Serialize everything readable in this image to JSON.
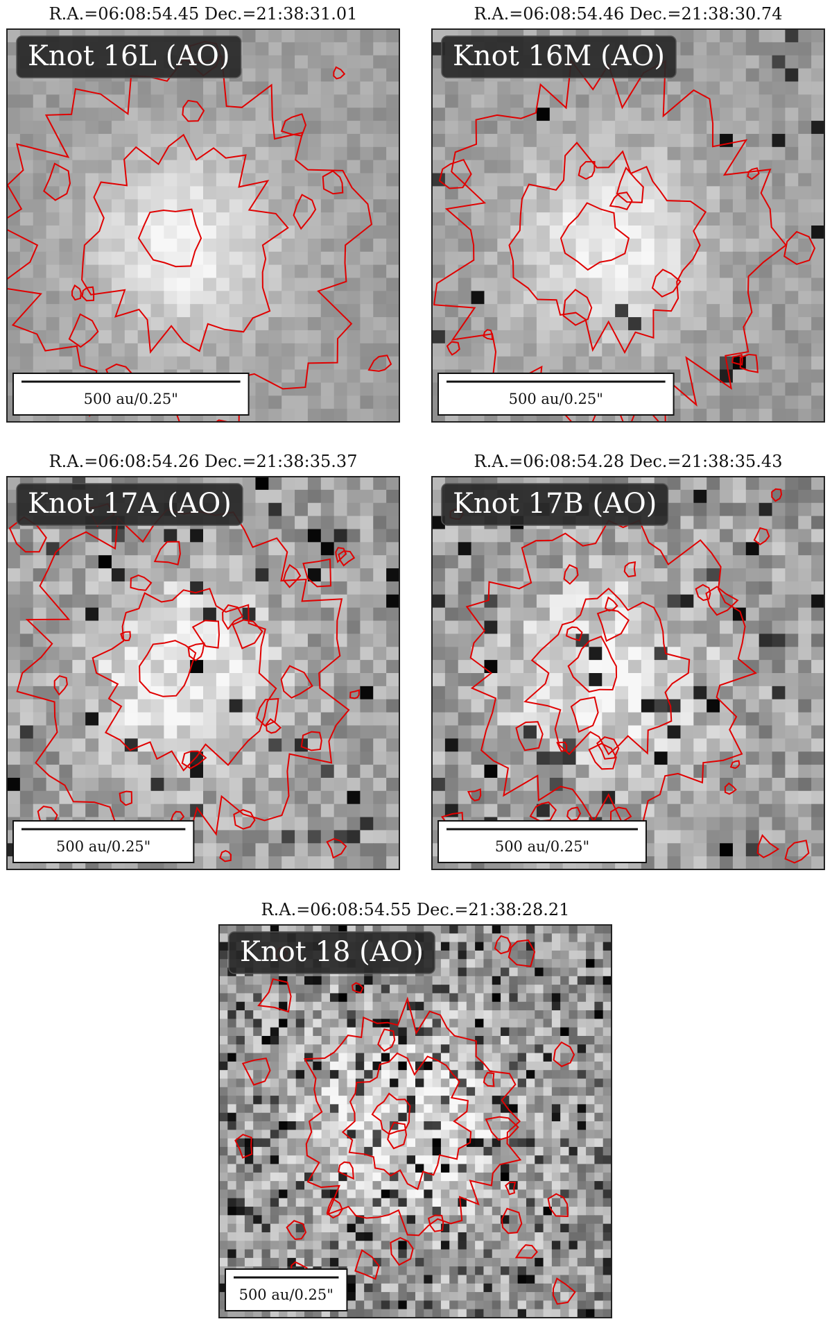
{
  "panels": [
    {
      "coords": "R.A.=06:08:54.45 Dec.=21:38:31.01",
      "label": "Knot 16L (AO)",
      "scalebar": "500 au/0.25\""
    },
    {
      "coords": "R.A.=06:08:54.46 Dec.=21:38:30.74",
      "label": "Knot 16M (AO)",
      "scalebar": "500 au/0.25\""
    },
    {
      "coords": "R.A.=06:08:54.26 Dec.=21:38:35.37",
      "label": "Knot 17A (AO)",
      "scalebar": "500 au/0.25\""
    },
    {
      "coords": "R.A.=06:08:54.28 Dec.=21:38:35.43",
      "label": "Knot 17B (AO)",
      "scalebar": "500 au/0.25\""
    },
    {
      "coords": "R.A.=06:08:54.55 Dec.=21:38:28.21",
      "label": "Knot 18 (AO)",
      "scalebar": "500 au/0.25\""
    }
  ]
}
